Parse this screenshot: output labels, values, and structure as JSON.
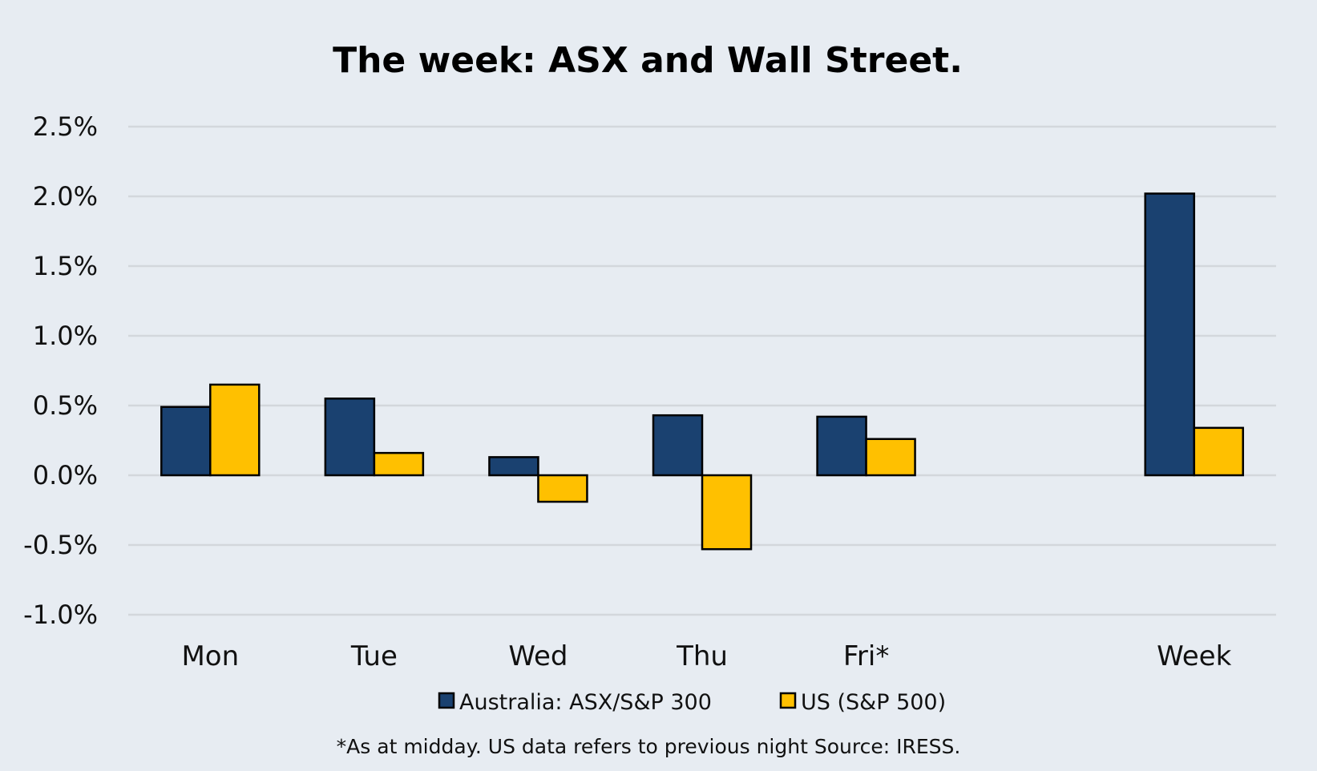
{
  "chart_data": {
    "type": "bar",
    "title": "The week:  ASX and Wall Street.",
    "categories": [
      "Mon",
      "Tue",
      "Wed",
      "Thu",
      "Fri*",
      "",
      "Week"
    ],
    "series": [
      {
        "name": "Australia: ASX/S&P 300",
        "color": "#1a4170",
        "values": [
          0.49,
          0.55,
          0.13,
          0.43,
          0.42,
          null,
          2.02
        ]
      },
      {
        "name": "US (S&P 500)",
        "color": "#ffc000",
        "values": [
          0.65,
          0.16,
          -0.19,
          -0.53,
          0.26,
          null,
          0.34
        ]
      }
    ],
    "ylim": [
      -1.0,
      2.5
    ],
    "yticks": [
      2.5,
      2.0,
      1.5,
      1.0,
      0.5,
      0.0,
      -0.5,
      -1.0
    ],
    "ytick_labels": [
      "2.5%",
      "2.0%",
      "1.5%",
      "1.0%",
      "0.5%",
      "0.0%",
      "-0.5%",
      "-1.0%"
    ],
    "xlabel": "",
    "ylabel": "",
    "legend_position": "bottom",
    "footnote": "*As at midday. US data refers to previous night  Source:  IRESS.",
    "grid": true
  }
}
